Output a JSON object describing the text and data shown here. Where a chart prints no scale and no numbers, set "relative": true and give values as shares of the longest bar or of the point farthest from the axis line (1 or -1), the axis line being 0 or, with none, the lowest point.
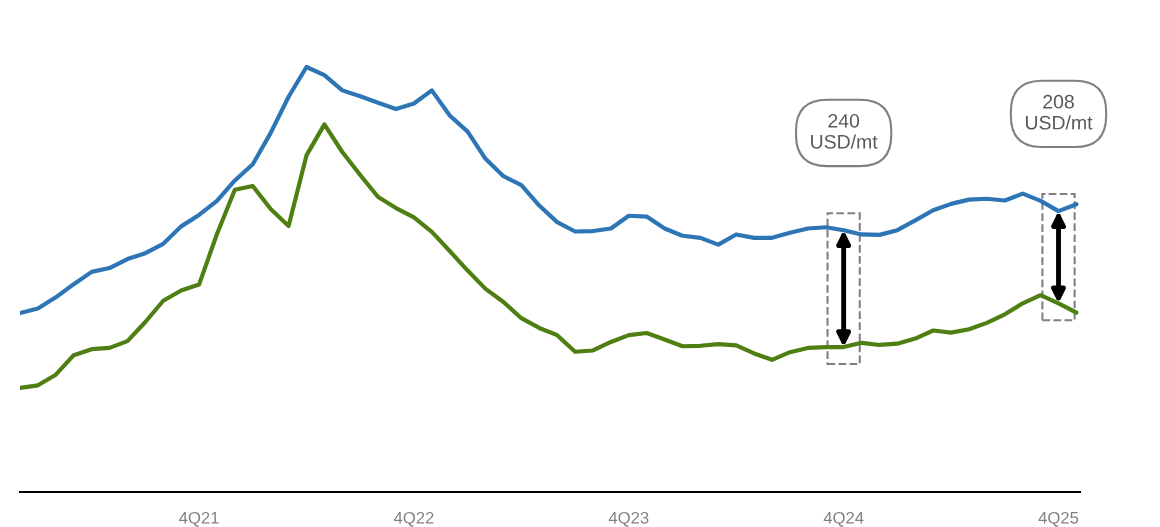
{
  "chart_data": {
    "type": "line",
    "relative": true,
    "categories": [
      null,
      null,
      null,
      null,
      null,
      null,
      null,
      null,
      null,
      null,
      "4Q21",
      null,
      null,
      null,
      null,
      null,
      null,
      null,
      null,
      null,
      null,
      null,
      "4Q22",
      null,
      null,
      null,
      null,
      null,
      null,
      null,
      null,
      null,
      null,
      null,
      "4Q23",
      null,
      null,
      null,
      null,
      null,
      null,
      null,
      null,
      null,
      null,
      null,
      "4Q24",
      null,
      null,
      null,
      null,
      null,
      null,
      null,
      null,
      null,
      null,
      null,
      "4Q25",
      null
    ],
    "tick_labels": "x",
    "marker": "none",
    "line_style": "solid",
    "series": [
      {
        "color": "#2e75b6",
        "values": [
          0.421,
          0.432,
          0.458,
          0.489,
          0.518,
          0.527,
          0.548,
          0.562,
          0.584,
          0.625,
          0.652,
          0.685,
          0.733,
          0.771,
          0.845,
          0.93,
          1.0,
          0.981,
          0.945,
          0.931,
          0.916,
          0.901,
          0.914,
          0.945,
          0.886,
          0.848,
          0.784,
          0.743,
          0.722,
          0.674,
          0.635,
          0.613,
          0.614,
          0.62,
          0.65,
          0.648,
          0.62,
          0.603,
          0.598,
          0.582,
          0.606,
          0.598,
          0.598,
          0.61,
          0.62,
          0.623,
          0.616,
          0.606,
          0.605,
          0.616,
          0.639,
          0.663,
          0.678,
          0.688,
          0.69,
          0.686,
          0.702,
          0.685,
          0.661,
          0.677
        ]
      },
      {
        "color": "#4f7f12",
        "values": [
          0.245,
          0.251,
          0.276,
          0.322,
          0.336,
          0.339,
          0.355,
          0.4,
          0.45,
          0.474,
          0.488,
          0.607,
          0.711,
          0.72,
          0.666,
          0.626,
          0.792,
          0.865,
          0.8,
          0.746,
          0.694,
          0.668,
          0.646,
          0.612,
          0.567,
          0.521,
          0.478,
          0.447,
          0.409,
          0.386,
          0.369,
          0.33,
          0.333,
          0.353,
          0.369,
          0.374,
          0.359,
          0.343,
          0.344,
          0.348,
          0.345,
          0.326,
          0.311,
          0.329,
          0.339,
          0.341,
          0.341,
          0.351,
          0.346,
          0.349,
          0.361,
          0.38,
          0.375,
          0.383,
          0.398,
          0.418,
          0.444,
          0.463,
          0.444,
          0.422
        ]
      }
    ],
    "annotations": [
      "240\nUSD/mt",
      "208\nUSD/mt"
    ]
  }
}
